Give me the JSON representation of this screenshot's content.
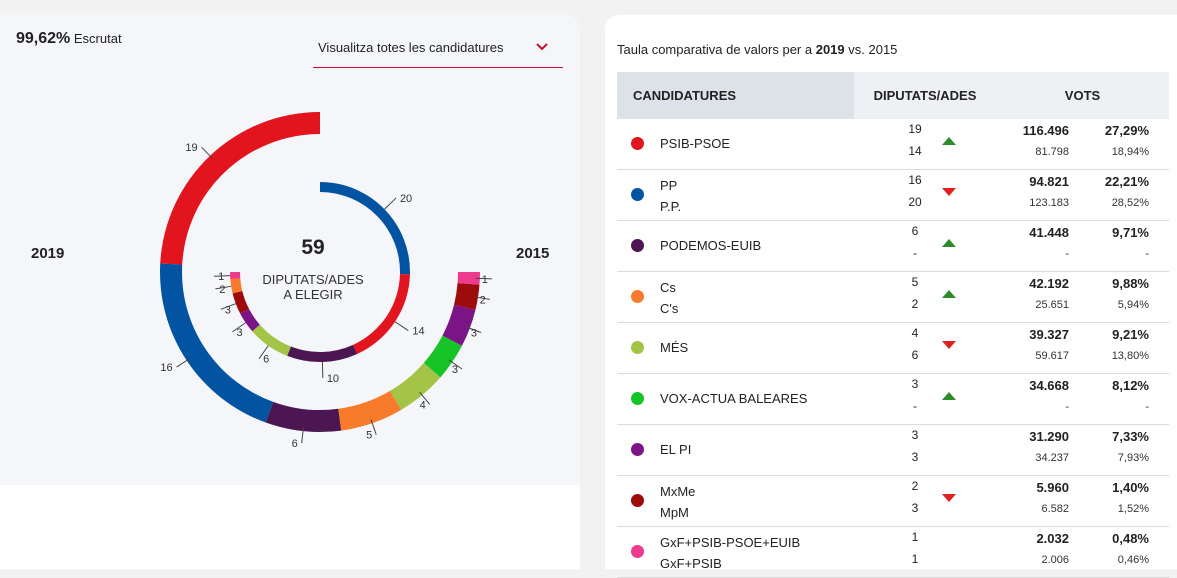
{
  "scrutat": {
    "pct": "99,62%",
    "label": "Escrutat"
  },
  "dropdown": {
    "label": "Visualitza totes les candidatures"
  },
  "chart": {
    "year_left": "2019",
    "year_right": "2015",
    "total": "59",
    "total_label_1": "DIPUTATS/ADES",
    "total_label_2": "A ELEGIR"
  },
  "chart_data": {
    "type": "pie",
    "title": "59 DIPUTATS/ADES A ELEGIR",
    "series": [
      {
        "name": "2019",
        "values": [
          19,
          16,
          6,
          5,
          4,
          3,
          3,
          2,
          1
        ],
        "labels": [
          "19",
          "16",
          "6",
          "5",
          "4",
          "3",
          "3",
          "2",
          "1"
        ]
      },
      {
        "name": "2015",
        "values": [
          20,
          14,
          10,
          6,
          3,
          3,
          2,
          1
        ],
        "labels": [
          "20",
          "14",
          "10",
          "6",
          "3",
          "3",
          "2",
          "1"
        ]
      }
    ],
    "colors_2019": [
      "#e2141e",
      "#0253a1",
      "#4b1651",
      "#f77b2b",
      "#a3c446",
      "#17c427",
      "#7b1487",
      "#9d0b0b",
      "#ec3a8d"
    ],
    "colors_2015": [
      "#0253a1",
      "#e2141e",
      "#4b1651",
      "#a3c446",
      "#7b1487",
      "#9d0b0b",
      "#f77b2b",
      "#ec3a8d"
    ]
  },
  "table": {
    "title_prefix": "Taula comparativa de valors per a ",
    "year_a": "2019",
    "vs": " vs. ",
    "year_b": "2015",
    "headers": {
      "c1": "CANDIDATURES",
      "c2": "DIPUTATS/ADES",
      "c3": "VOTS"
    },
    "rows": [
      {
        "color": "#e2141e",
        "n1": "PSIB-PSOE",
        "n2": "",
        "s1": "19",
        "s2": "14",
        "trend": "up",
        "v1": "116.496",
        "p1": "27,29%",
        "v2": "81.798",
        "p2": "18,94%"
      },
      {
        "color": "#0253a1",
        "n1": "PP",
        "n2": "P.P.",
        "s1": "16",
        "s2": "20",
        "trend": "down",
        "v1": "94.821",
        "p1": "22,21%",
        "v2": "123.183",
        "p2": "28,52%"
      },
      {
        "color": "#4b1651",
        "n1": "PODEMOS-EUIB",
        "n2": "",
        "s1": "6",
        "s2": "-",
        "trend": "up",
        "v1": "41.448",
        "p1": "9,71%",
        "v2": "-",
        "p2": "-"
      },
      {
        "color": "#f77b2b",
        "n1": "Cs",
        "n2": "C's",
        "s1": "5",
        "s2": "2",
        "trend": "up",
        "v1": "42.192",
        "p1": "9,88%",
        "v2": "25.651",
        "p2": "5,94%"
      },
      {
        "color": "#a3c446",
        "n1": "MÉS",
        "n2": "",
        "s1": "4",
        "s2": "6",
        "trend": "down",
        "v1": "39.327",
        "p1": "9,21%",
        "v2": "59.617",
        "p2": "13,80%"
      },
      {
        "color": "#17c427",
        "n1": "VOX-ACTUA BALEARES",
        "n2": "",
        "s1": "3",
        "s2": "-",
        "trend": "up",
        "v1": "34.668",
        "p1": "8,12%",
        "v2": "-",
        "p2": "-"
      },
      {
        "color": "#7b1487",
        "n1": "EL PI",
        "n2": "",
        "s1": "3",
        "s2": "3",
        "trend": "none",
        "v1": "31.290",
        "p1": "7,33%",
        "v2": "34.237",
        "p2": "7,93%"
      },
      {
        "color": "#9d0b0b",
        "n1": "MxMe",
        "n2": "MpM",
        "s1": "2",
        "s2": "3",
        "trend": "down",
        "v1": "5.960",
        "p1": "1,40%",
        "v2": "6.582",
        "p2": "1,52%"
      },
      {
        "color": "#ec3a8d",
        "n1": "GxF+PSIB-PSOE+EUIB",
        "n2": "GxF+PSIB",
        "s1": "1",
        "s2": "1",
        "trend": "none",
        "v1": "2.032",
        "p1": "0,48%",
        "v2": "2.006",
        "p2": "0,46%"
      }
    ]
  }
}
